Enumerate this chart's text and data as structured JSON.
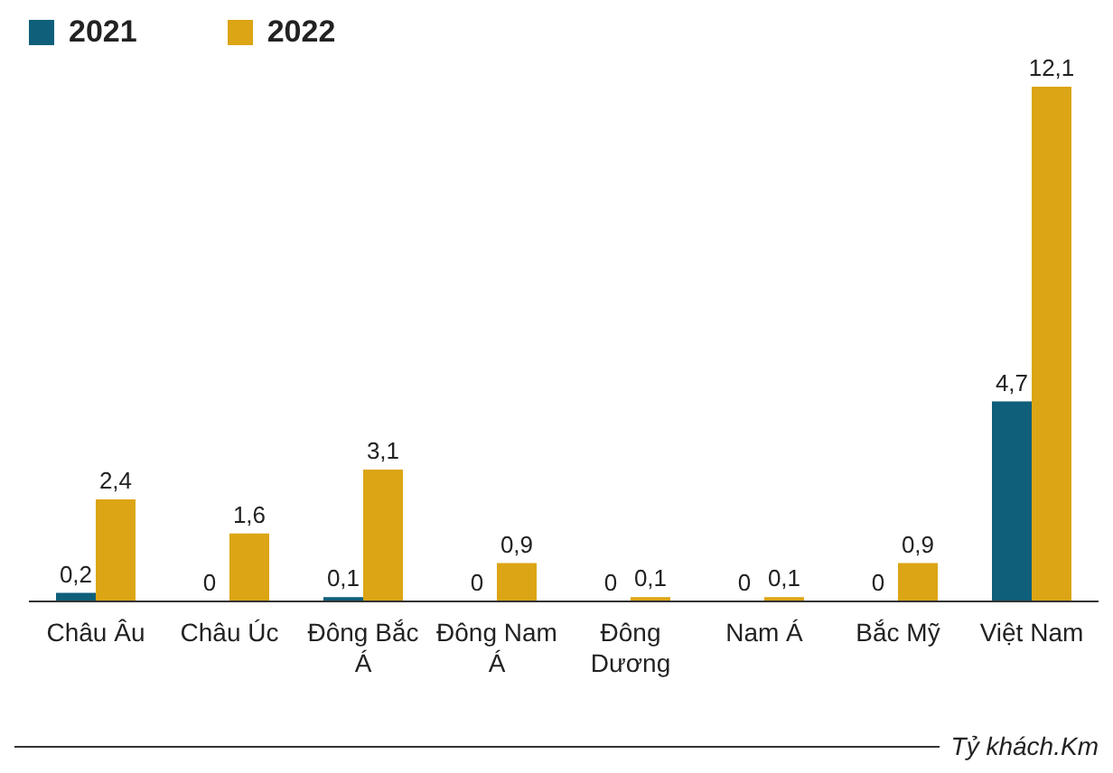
{
  "chart_data": {
    "type": "bar",
    "categories": [
      "Châu Âu",
      "Châu Úc",
      "Đông Bắc Á",
      "Đông Nam Á",
      "Đông Dương",
      "Nam Á",
      "Bắc Mỹ",
      "Việt Nam"
    ],
    "series": [
      {
        "name": "2021",
        "color": "#0f5f7a",
        "values": [
          0.2,
          0,
          0.1,
          0,
          0,
          0,
          0,
          4.7
        ],
        "value_labels": [
          "0,2",
          "0",
          "0,1",
          "0",
          "0",
          "0",
          "0",
          "4,7"
        ]
      },
      {
        "name": "2022",
        "color": "#dca515",
        "values": [
          2.4,
          1.6,
          3.1,
          0.9,
          0.1,
          0.1,
          0.9,
          12.1
        ],
        "value_labels": [
          "2,4",
          "1,6",
          "3,1",
          "0,9",
          "0,1",
          "0,1",
          "0,9",
          "12,1"
        ]
      }
    ],
    "legend": "top left",
    "grid": false,
    "annotations": [
      "Tỷ khách.Km"
    ]
  }
}
